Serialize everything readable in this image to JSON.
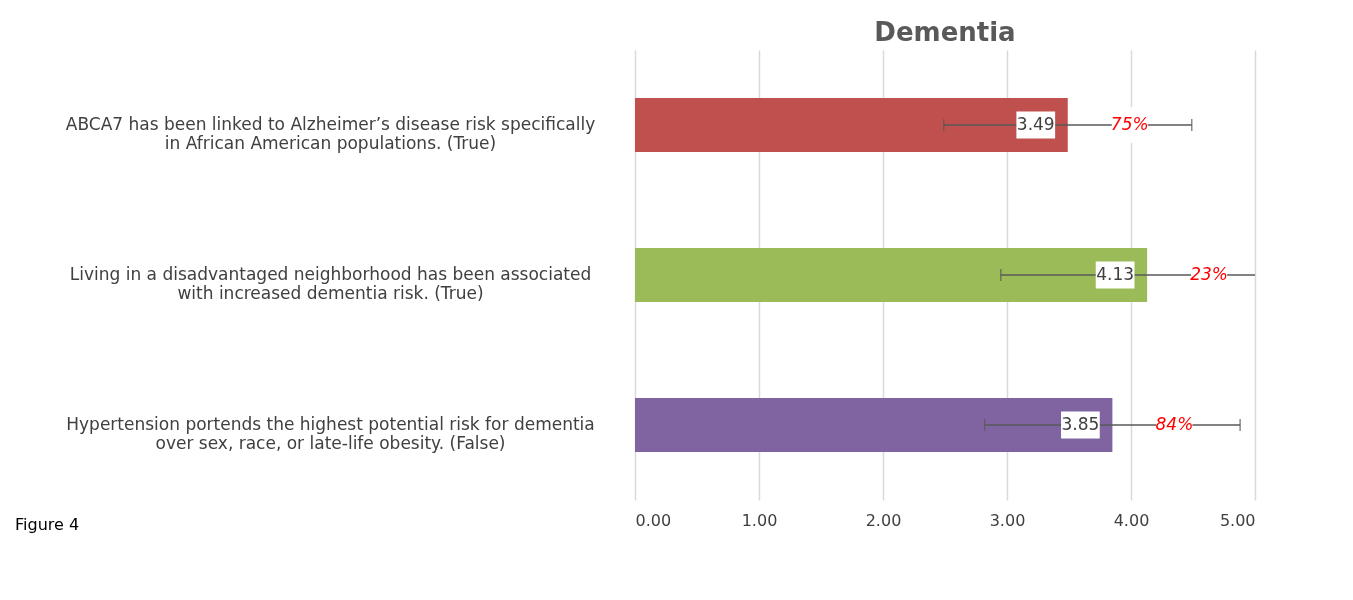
{
  "chart_data": {
    "type": "bar",
    "orientation": "horizontal",
    "title": "Dementia",
    "categories": [
      "ABCA7 has been linked to Alzheimer’s disease risk specifically in African American populations. (True)",
      "Living in a disadvantaged neighborhood has been associated with increased dementia risk. (True)",
      "Hypertension portends the highest potential risk for dementia over sex, race, or late-life obesity. (False)"
    ],
    "values": [
      3.49,
      4.13,
      3.85
    ],
    "colors": [
      "#c0504d",
      "#9bbb59",
      "#8064a2"
    ],
    "errors": [
      [
        2.49,
        4.49
      ],
      [
        2.95,
        5.0
      ],
      [
        2.82,
        4.88
      ]
    ],
    "data_labels": true,
    "xlim": [
      0,
      5
    ],
    "xticks": [
      {
        "value": 0,
        "label": "0.00"
      },
      {
        "value": 1,
        "label": "1.00"
      },
      {
        "value": 2,
        "label": "2.00"
      },
      {
        "value": 3,
        "label": "3.00"
      },
      {
        "value": 4,
        "label": "4.00"
      },
      {
        "value": 5,
        "label": "5.00"
      }
    ],
    "grid": "x",
    "annotations": [
      "75%",
      "23%",
      "84%",
      "Figure 4"
    ]
  }
}
